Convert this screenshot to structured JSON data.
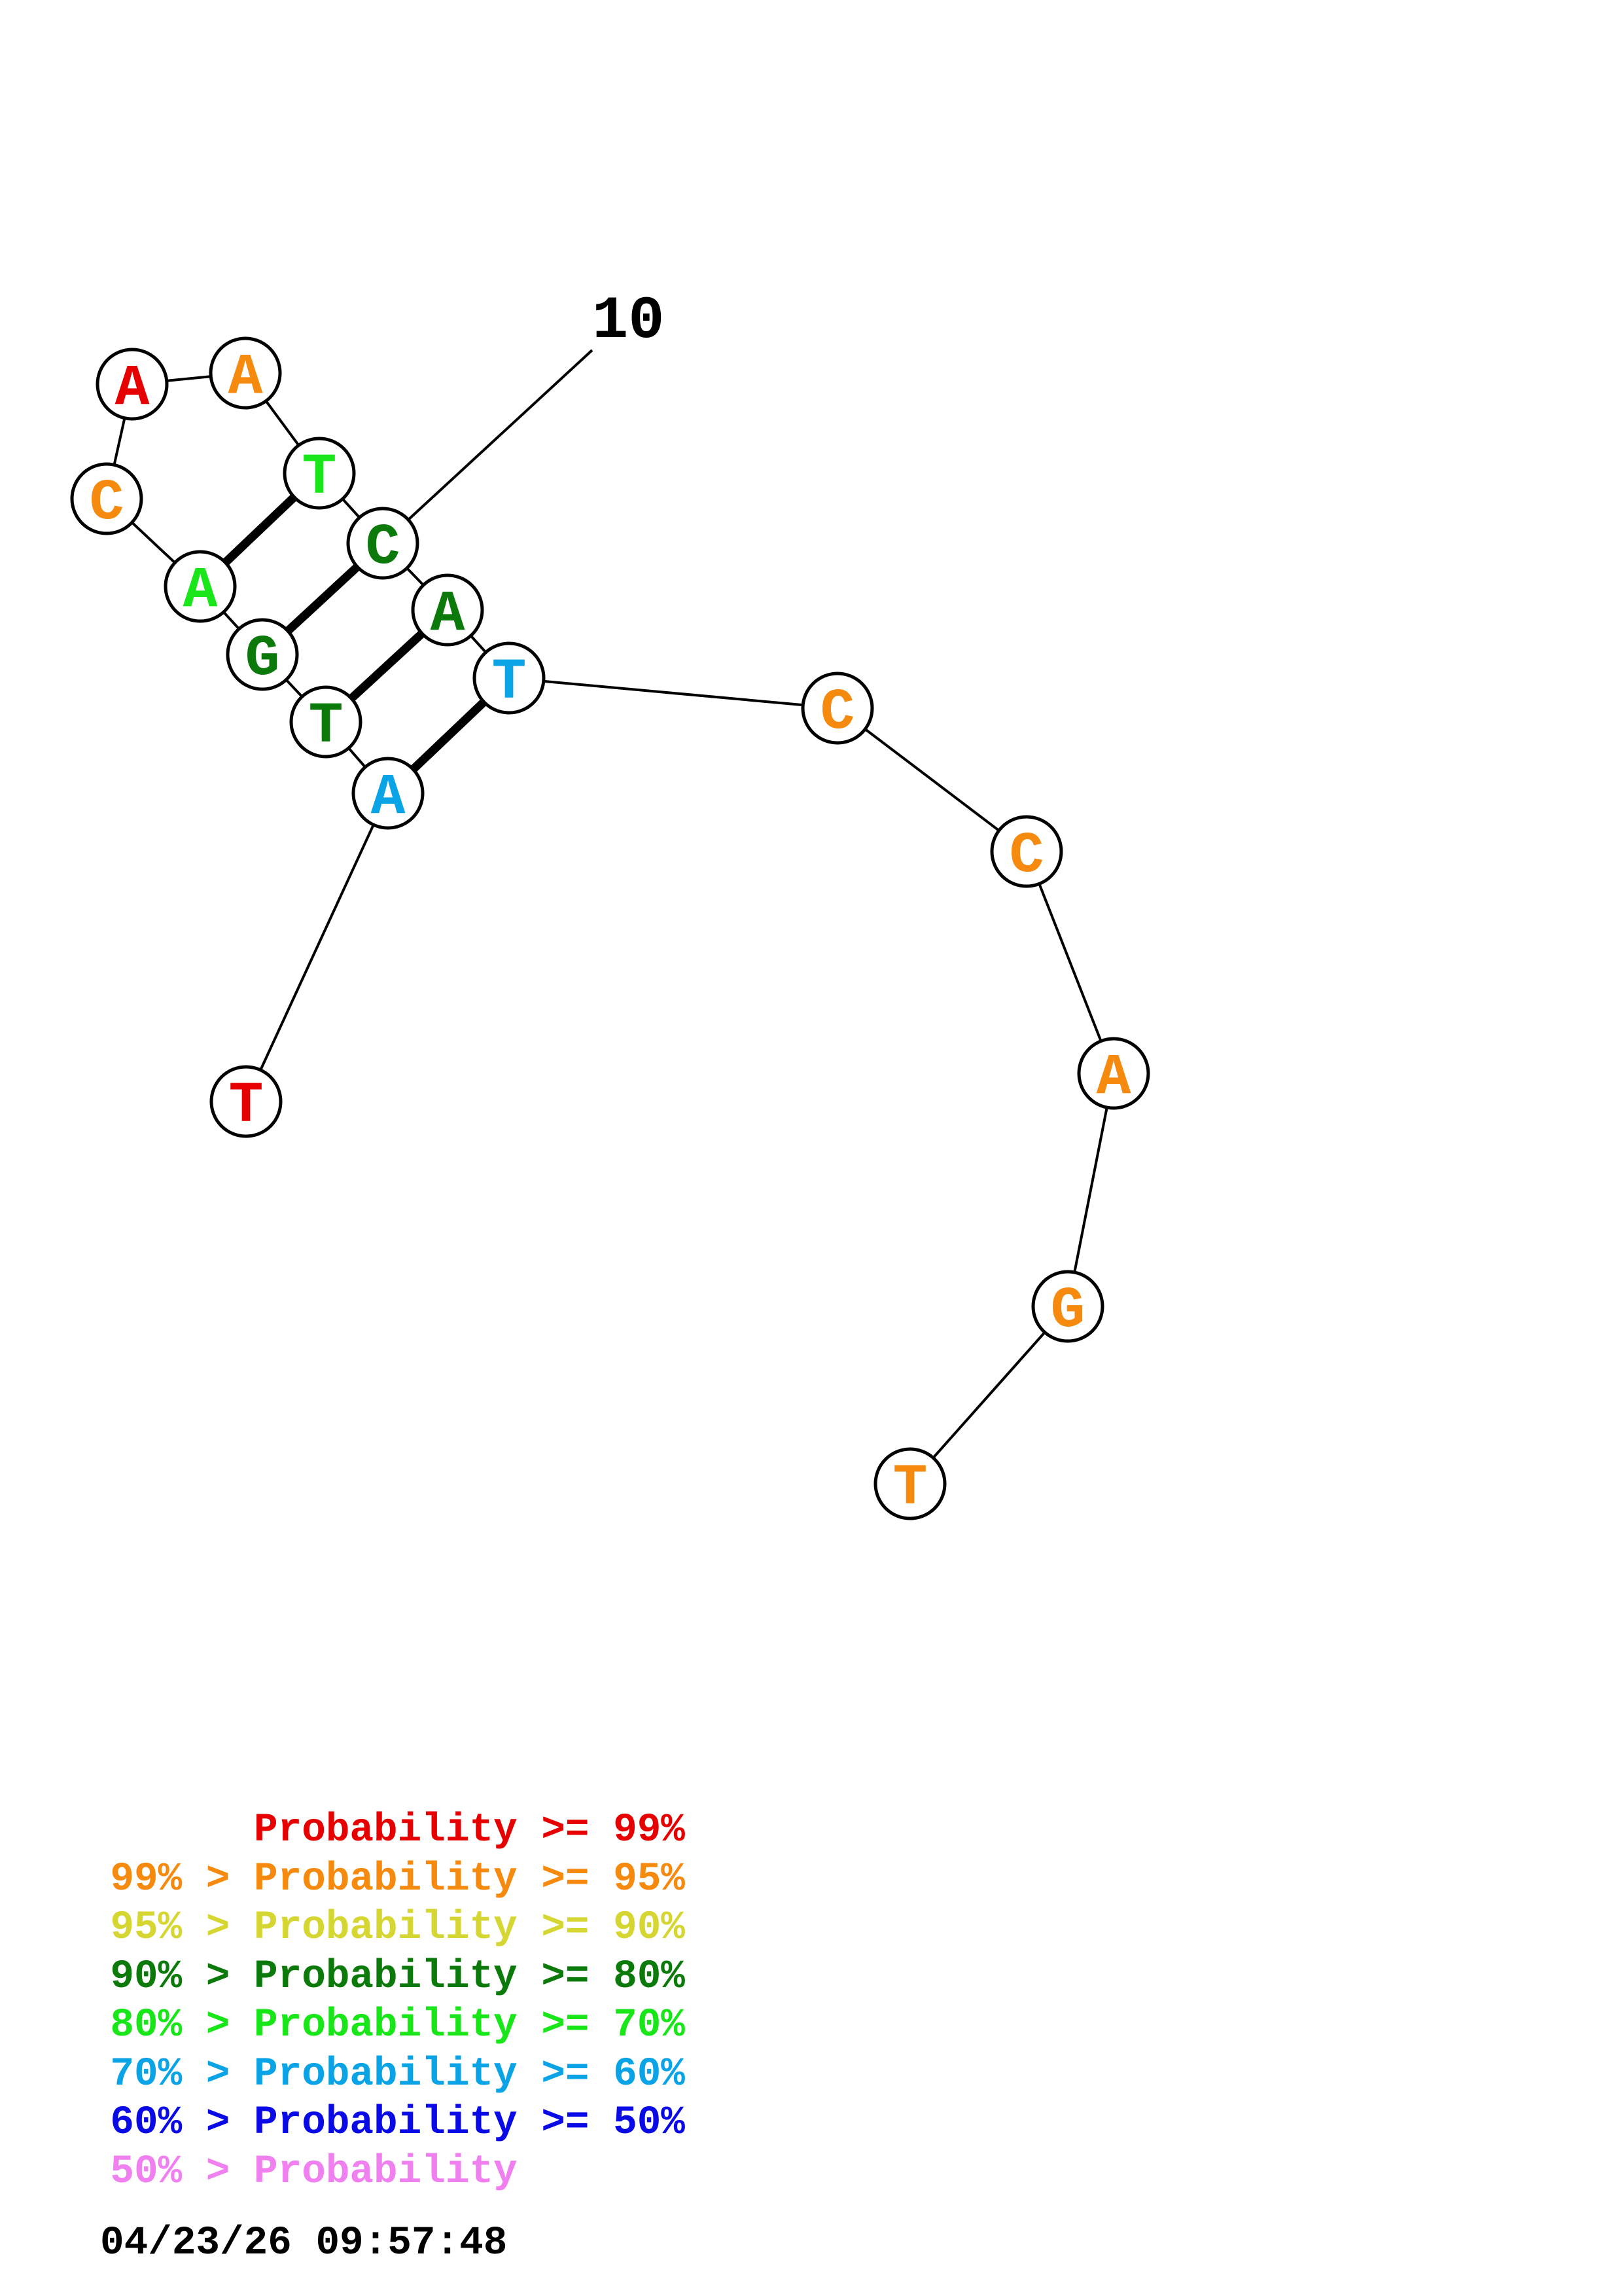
{
  "sequence": [
    {
      "base": "T",
      "color": "#e60000"
    },
    {
      "base": "A",
      "color": "#0aa3e6"
    },
    {
      "base": "T",
      "color": "#0b7a0b"
    },
    {
      "base": "G",
      "color": "#0b7a0b"
    },
    {
      "base": "A",
      "color": "#19e619"
    },
    {
      "base": "C",
      "color": "#f58a0f"
    },
    {
      "base": "A",
      "color": "#e60000"
    },
    {
      "base": "A",
      "color": "#f58a0f"
    },
    {
      "base": "T",
      "color": "#19e619"
    },
    {
      "base": "C",
      "color": "#0b7a0b"
    },
    {
      "base": "A",
      "color": "#0b7a0b"
    },
    {
      "base": "T",
      "color": "#0aa3e6"
    },
    {
      "base": "C",
      "color": "#f58a0f"
    },
    {
      "base": "C",
      "color": "#f58a0f"
    },
    {
      "base": "A",
      "color": "#f58a0f"
    },
    {
      "base": "G",
      "color": "#f58a0f"
    },
    {
      "base": "T",
      "color": "#f58a0f"
    }
  ],
  "pairs": [
    [
      2,
      12
    ],
    [
      3,
      11
    ],
    [
      4,
      10
    ],
    [
      5,
      9
    ]
  ],
  "index_marker": {
    "label": "10",
    "position": 10
  },
  "legend": [
    {
      "prefix": "",
      "label": "Probability >= 99%",
      "color": "#e60000"
    },
    {
      "prefix": "99% > ",
      "label": "Probability >= 95%",
      "color": "#f58a0f"
    },
    {
      "prefix": "95% > ",
      "label": "Probability >= 90%",
      "color": "#d6d633"
    },
    {
      "prefix": "90% > ",
      "label": "Probability >= 80%",
      "color": "#0b7a0b"
    },
    {
      "prefix": "80% > ",
      "label": "Probability >= 70%",
      "color": "#19e619"
    },
    {
      "prefix": "70% > ",
      "label": "Probability >= 60%",
      "color": "#0aa3e6"
    },
    {
      "prefix": "60% > ",
      "label": "Probability >= 50%",
      "color": "#0a0ae6"
    },
    {
      "prefix": "50% > ",
      "label": "Probability",
      "color": "#f07ff0"
    }
  ],
  "timestamp": "04/23/26 09:57:48"
}
